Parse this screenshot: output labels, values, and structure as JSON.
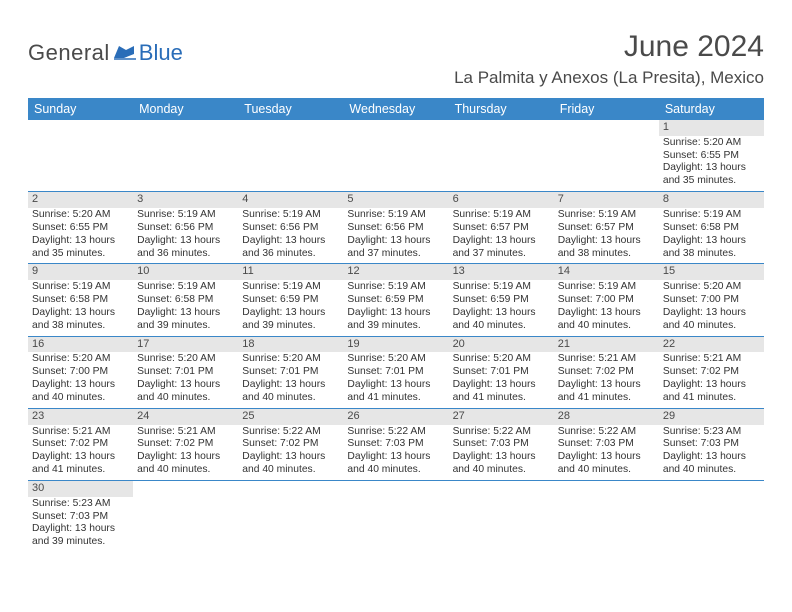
{
  "brand": {
    "general": "General",
    "blue": "Blue"
  },
  "header": {
    "month_year": "June 2024",
    "location": "La Palmita y Anexos (La Presita), Mexico"
  },
  "colors": {
    "header_bar": "#3a87c8",
    "daynum_bg": "#e6e6e6",
    "text_dark": "#4a4a4a",
    "brand_blue": "#2a6db8",
    "row_border": "#3a87c8"
  },
  "fonts": {
    "month_title_pt": 30,
    "location_pt": 17,
    "weekday_pt": 12.5,
    "cell_pt": 10.3
  },
  "weekdays": [
    "Sunday",
    "Monday",
    "Tuesday",
    "Wednesday",
    "Thursday",
    "Friday",
    "Saturday"
  ],
  "weeks": [
    [
      {
        "empty": true
      },
      {
        "empty": true
      },
      {
        "empty": true
      },
      {
        "empty": true
      },
      {
        "empty": true
      },
      {
        "empty": true
      },
      {
        "n": "1",
        "sunrise": "Sunrise: 5:20 AM",
        "sunset": "Sunset: 6:55 PM",
        "day1": "Daylight: 13 hours",
        "day2": "and 35 minutes."
      }
    ],
    [
      {
        "n": "2",
        "sunrise": "Sunrise: 5:20 AM",
        "sunset": "Sunset: 6:55 PM",
        "day1": "Daylight: 13 hours",
        "day2": "and 35 minutes."
      },
      {
        "n": "3",
        "sunrise": "Sunrise: 5:19 AM",
        "sunset": "Sunset: 6:56 PM",
        "day1": "Daylight: 13 hours",
        "day2": "and 36 minutes."
      },
      {
        "n": "4",
        "sunrise": "Sunrise: 5:19 AM",
        "sunset": "Sunset: 6:56 PM",
        "day1": "Daylight: 13 hours",
        "day2": "and 36 minutes."
      },
      {
        "n": "5",
        "sunrise": "Sunrise: 5:19 AM",
        "sunset": "Sunset: 6:56 PM",
        "day1": "Daylight: 13 hours",
        "day2": "and 37 minutes."
      },
      {
        "n": "6",
        "sunrise": "Sunrise: 5:19 AM",
        "sunset": "Sunset: 6:57 PM",
        "day1": "Daylight: 13 hours",
        "day2": "and 37 minutes."
      },
      {
        "n": "7",
        "sunrise": "Sunrise: 5:19 AM",
        "sunset": "Sunset: 6:57 PM",
        "day1": "Daylight: 13 hours",
        "day2": "and 38 minutes."
      },
      {
        "n": "8",
        "sunrise": "Sunrise: 5:19 AM",
        "sunset": "Sunset: 6:58 PM",
        "day1": "Daylight: 13 hours",
        "day2": "and 38 minutes."
      }
    ],
    [
      {
        "n": "9",
        "sunrise": "Sunrise: 5:19 AM",
        "sunset": "Sunset: 6:58 PM",
        "day1": "Daylight: 13 hours",
        "day2": "and 38 minutes."
      },
      {
        "n": "10",
        "sunrise": "Sunrise: 5:19 AM",
        "sunset": "Sunset: 6:58 PM",
        "day1": "Daylight: 13 hours",
        "day2": "and 39 minutes."
      },
      {
        "n": "11",
        "sunrise": "Sunrise: 5:19 AM",
        "sunset": "Sunset: 6:59 PM",
        "day1": "Daylight: 13 hours",
        "day2": "and 39 minutes."
      },
      {
        "n": "12",
        "sunrise": "Sunrise: 5:19 AM",
        "sunset": "Sunset: 6:59 PM",
        "day1": "Daylight: 13 hours",
        "day2": "and 39 minutes."
      },
      {
        "n": "13",
        "sunrise": "Sunrise: 5:19 AM",
        "sunset": "Sunset: 6:59 PM",
        "day1": "Daylight: 13 hours",
        "day2": "and 40 minutes."
      },
      {
        "n": "14",
        "sunrise": "Sunrise: 5:19 AM",
        "sunset": "Sunset: 7:00 PM",
        "day1": "Daylight: 13 hours",
        "day2": "and 40 minutes."
      },
      {
        "n": "15",
        "sunrise": "Sunrise: 5:20 AM",
        "sunset": "Sunset: 7:00 PM",
        "day1": "Daylight: 13 hours",
        "day2": "and 40 minutes."
      }
    ],
    [
      {
        "n": "16",
        "sunrise": "Sunrise: 5:20 AM",
        "sunset": "Sunset: 7:00 PM",
        "day1": "Daylight: 13 hours",
        "day2": "and 40 minutes."
      },
      {
        "n": "17",
        "sunrise": "Sunrise: 5:20 AM",
        "sunset": "Sunset: 7:01 PM",
        "day1": "Daylight: 13 hours",
        "day2": "and 40 minutes."
      },
      {
        "n": "18",
        "sunrise": "Sunrise: 5:20 AM",
        "sunset": "Sunset: 7:01 PM",
        "day1": "Daylight: 13 hours",
        "day2": "and 40 minutes."
      },
      {
        "n": "19",
        "sunrise": "Sunrise: 5:20 AM",
        "sunset": "Sunset: 7:01 PM",
        "day1": "Daylight: 13 hours",
        "day2": "and 41 minutes."
      },
      {
        "n": "20",
        "sunrise": "Sunrise: 5:20 AM",
        "sunset": "Sunset: 7:01 PM",
        "day1": "Daylight: 13 hours",
        "day2": "and 41 minutes."
      },
      {
        "n": "21",
        "sunrise": "Sunrise: 5:21 AM",
        "sunset": "Sunset: 7:02 PM",
        "day1": "Daylight: 13 hours",
        "day2": "and 41 minutes."
      },
      {
        "n": "22",
        "sunrise": "Sunrise: 5:21 AM",
        "sunset": "Sunset: 7:02 PM",
        "day1": "Daylight: 13 hours",
        "day2": "and 41 minutes."
      }
    ],
    [
      {
        "n": "23",
        "sunrise": "Sunrise: 5:21 AM",
        "sunset": "Sunset: 7:02 PM",
        "day1": "Daylight: 13 hours",
        "day2": "and 41 minutes."
      },
      {
        "n": "24",
        "sunrise": "Sunrise: 5:21 AM",
        "sunset": "Sunset: 7:02 PM",
        "day1": "Daylight: 13 hours",
        "day2": "and 40 minutes."
      },
      {
        "n": "25",
        "sunrise": "Sunrise: 5:22 AM",
        "sunset": "Sunset: 7:02 PM",
        "day1": "Daylight: 13 hours",
        "day2": "and 40 minutes."
      },
      {
        "n": "26",
        "sunrise": "Sunrise: 5:22 AM",
        "sunset": "Sunset: 7:03 PM",
        "day1": "Daylight: 13 hours",
        "day2": "and 40 minutes."
      },
      {
        "n": "27",
        "sunrise": "Sunrise: 5:22 AM",
        "sunset": "Sunset: 7:03 PM",
        "day1": "Daylight: 13 hours",
        "day2": "and 40 minutes."
      },
      {
        "n": "28",
        "sunrise": "Sunrise: 5:22 AM",
        "sunset": "Sunset: 7:03 PM",
        "day1": "Daylight: 13 hours",
        "day2": "and 40 minutes."
      },
      {
        "n": "29",
        "sunrise": "Sunrise: 5:23 AM",
        "sunset": "Sunset: 7:03 PM",
        "day1": "Daylight: 13 hours",
        "day2": "and 40 minutes."
      }
    ],
    [
      {
        "n": "30",
        "sunrise": "Sunrise: 5:23 AM",
        "sunset": "Sunset: 7:03 PM",
        "day1": "Daylight: 13 hours",
        "day2": "and 39 minutes."
      },
      {
        "empty": true
      },
      {
        "empty": true
      },
      {
        "empty": true
      },
      {
        "empty": true
      },
      {
        "empty": true
      },
      {
        "empty": true
      }
    ]
  ]
}
